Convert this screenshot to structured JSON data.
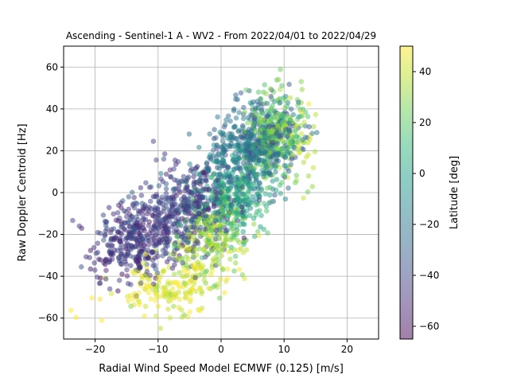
{
  "chart_data": {
    "type": "scatter",
    "title": "Ascending - Sentinel-1 A - WV2 - From 2022/04/01 to 2022/04/29",
    "xlabel": "Radial Wind Speed Model ECMWF (0.125) [m/s]",
    "ylabel": "Raw Doppler Centroid [Hz]",
    "xlim": [
      -25,
      25
    ],
    "ylim": [
      -70,
      70
    ],
    "xticks": [
      -20,
      -10,
      0,
      10,
      20
    ],
    "yticks": [
      -60,
      -40,
      -20,
      0,
      20,
      40,
      60
    ],
    "grid": true,
    "marker_alpha": 0.5,
    "colorbar": {
      "label": "Latitude [deg]",
      "range": [
        -65,
        50
      ],
      "ticks": [
        40,
        20,
        0,
        -20,
        -40,
        -60
      ],
      "colormap": "viridis",
      "stops": [
        "#440154",
        "#482878",
        "#3e4989",
        "#31688e",
        "#26828e",
        "#1f9e89",
        "#35b779",
        "#6ece58",
        "#b5de2b",
        "#fde725"
      ]
    },
    "clusters": [
      {
        "x": -13.5,
        "y": -22,
        "sx": 3.5,
        "sy": 10,
        "lat": -45,
        "n": 380
      },
      {
        "x": -5,
        "y": -8,
        "sx": 3.8,
        "sy": 12,
        "lat": -42,
        "n": 380
      },
      {
        "x": 6,
        "y": 24,
        "sx": 3.2,
        "sy": 10,
        "lat": -25,
        "n": 420
      },
      {
        "x": 2,
        "y": 10,
        "sx": 3.5,
        "sy": 12,
        "lat": -10,
        "n": 220
      },
      {
        "x": 2,
        "y": -5,
        "sx": 3.5,
        "sy": 9,
        "lat": 10,
        "n": 220
      },
      {
        "x": 8.5,
        "y": 28,
        "sx": 2.2,
        "sy": 10,
        "lat": 22,
        "n": 260
      },
      {
        "x": -2,
        "y": -24,
        "sx": 3.0,
        "sy": 8,
        "lat": 33,
        "n": 200
      },
      {
        "x": -8,
        "y": -45,
        "sx": 4.5,
        "sy": 6,
        "lat": 44,
        "n": 170
      },
      {
        "x": 12,
        "y": 22,
        "sx": 1.8,
        "sy": 10,
        "lat": 38,
        "n": 50
      }
    ]
  }
}
